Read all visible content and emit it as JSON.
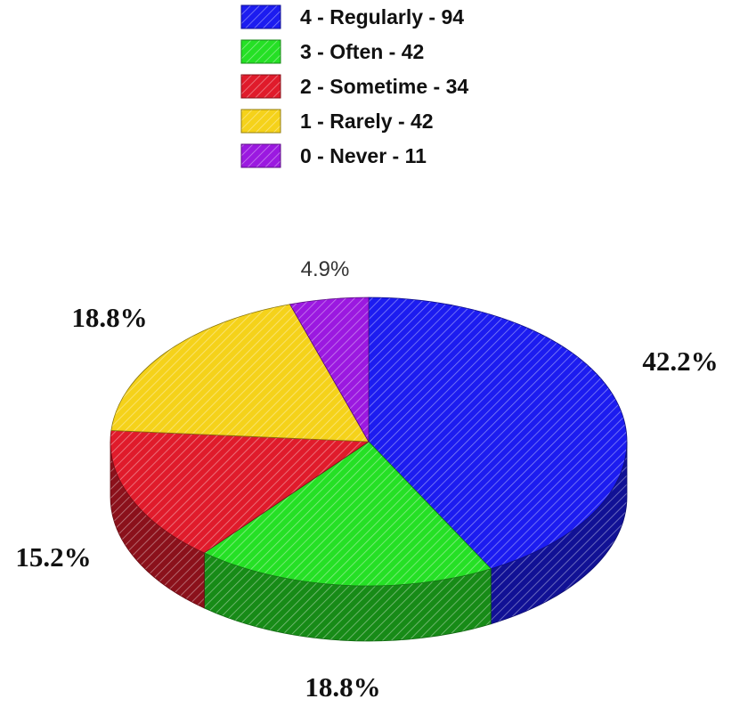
{
  "chart_data": {
    "type": "pie",
    "title": "",
    "slices": [
      {
        "label": "4 - Regularly - 94",
        "value": 94,
        "percent_label": "42.2%",
        "color": "#1c1cf0"
      },
      {
        "label": "3 - Often - 42",
        "value": 42,
        "percent_label": "18.8%",
        "color": "#25e025"
      },
      {
        "label": "2 - Sometime  - 34",
        "value": 34,
        "percent_label": "15.2%",
        "color": "#e01b2b"
      },
      {
        "label": "1 -  Rarely - 42",
        "value": 42,
        "percent_label": "18.8%",
        "color": "#f5d21a"
      },
      {
        "label": "0 - Never - 11",
        "value": 11,
        "percent_label": "4.9%",
        "color": "#9b19e0"
      }
    ],
    "legend_position": "top-center",
    "style": "3d-pie-with-diagonal-hatching"
  }
}
